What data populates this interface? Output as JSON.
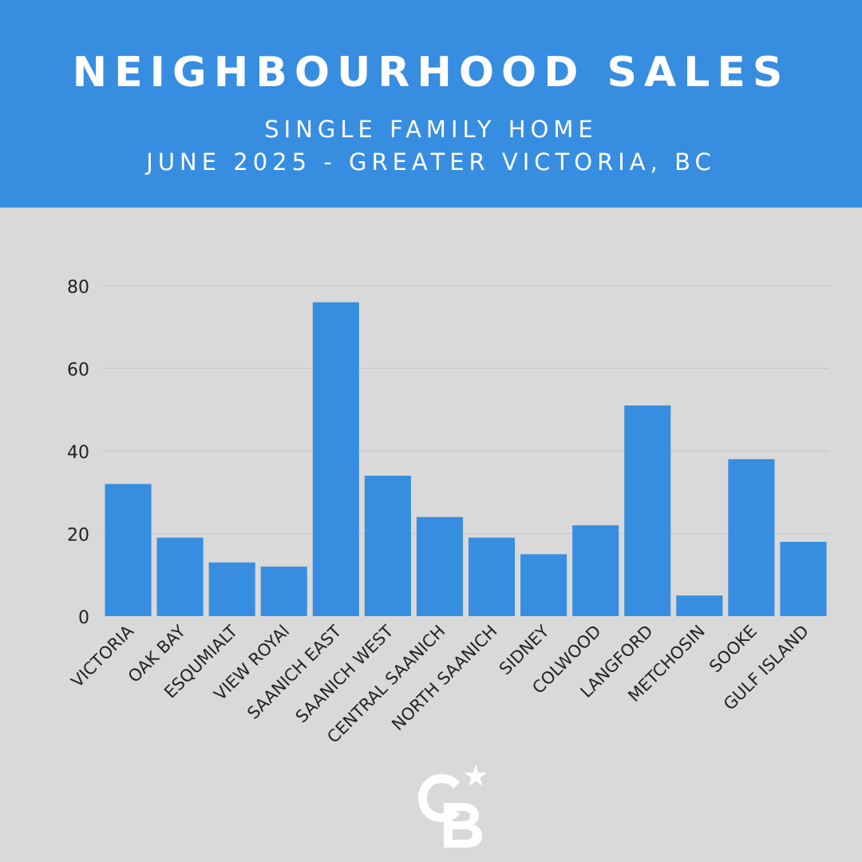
{
  "header": {
    "title": "NEIGHBOURHOOD SALES",
    "subtitle_line1": "SINGLE FAMILY HOME",
    "subtitle_line2": "JUNE 2025 - GREATER VICTORIA, BC"
  },
  "colors": {
    "accent": "#378de0",
    "background": "#d9d9d9",
    "gridline": "#c4c4c4",
    "text": "#222222"
  },
  "logo": {
    "icon": "coldwell-banker-cb-logo-icon",
    "text": "CB"
  },
  "chart_data": {
    "type": "bar",
    "title": "",
    "xlabel": "",
    "ylabel": "",
    "ylim": [
      0,
      80
    ],
    "yticks": [
      0,
      20,
      40,
      60,
      80
    ],
    "grid": true,
    "categories": [
      "VICTORIA",
      "OAK BAY",
      "ESQUMIALT",
      "VIEW ROYAl",
      "SAANICH EAST",
      "SAANICH WEST",
      "CENTRAL SAANICH",
      "NORTH SAANICH",
      "SIDNEY",
      "COLWOOD",
      "LANGFORD",
      "METCHOSIN",
      "SOOKE",
      "GULF ISLAND"
    ],
    "values": [
      32,
      19,
      13,
      12,
      76,
      34,
      24,
      19,
      15,
      22,
      51,
      5,
      38,
      18
    ]
  }
}
